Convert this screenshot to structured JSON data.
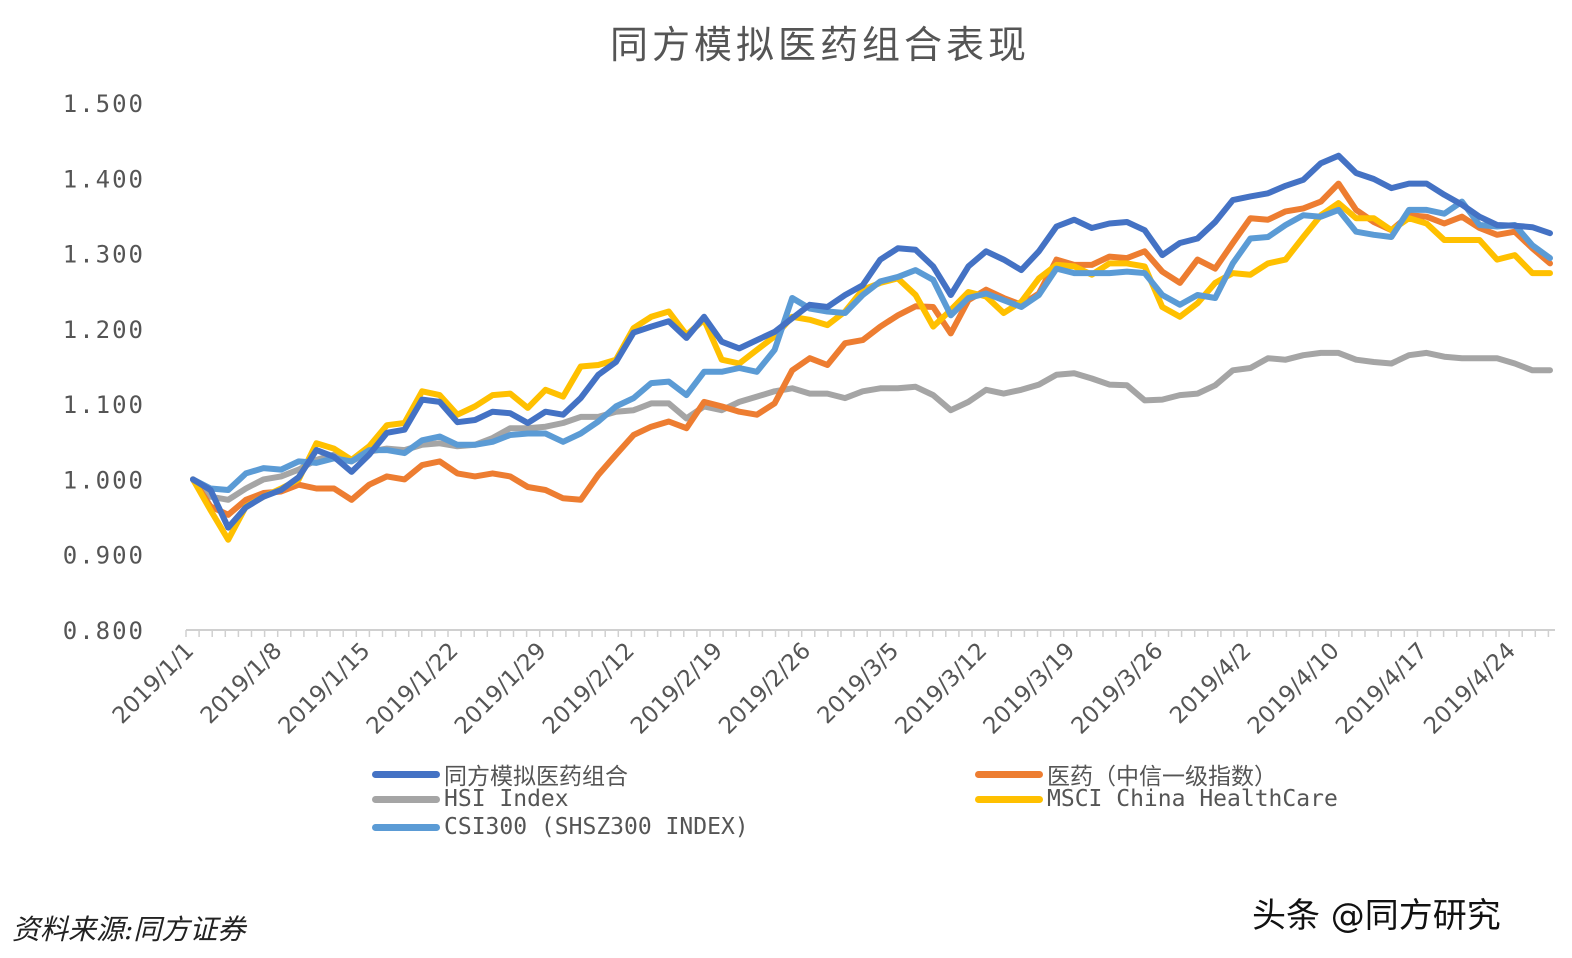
{
  "chart_data": {
    "type": "line",
    "title": "同方模拟医药组合表现",
    "xlabel": "",
    "ylabel": "",
    "ylim": [
      0.8,
      1.5
    ],
    "y_ticks": [
      "0.800",
      "0.900",
      "1.000",
      "1.100",
      "1.200",
      "1.300",
      "1.400",
      "1.500"
    ],
    "x_tick_labels": [
      "2019/1/1",
      "2019/1/8",
      "2019/1/15",
      "2019/1/22",
      "2019/1/29",
      "2019/2/12",
      "2019/2/19",
      "2019/2/26",
      "2019/3/5",
      "2019/3/12",
      "2019/3/19",
      "2019/3/26",
      "2019/4/2",
      "2019/4/10",
      "2019/4/17",
      "2019/4/24"
    ],
    "x_tick_label_every": 5,
    "grid": false,
    "legend_position": "bottom",
    "series": [
      {
        "name": "同方模拟医药组合",
        "color": "#4472C4",
        "values": [
          1.0,
          0.986,
          0.936,
          0.963,
          0.977,
          0.986,
          1.003,
          1.039,
          1.03,
          1.01,
          1.033,
          1.062,
          1.066,
          1.106,
          1.103,
          1.076,
          1.079,
          1.09,
          1.088,
          1.075,
          1.09,
          1.086,
          1.108,
          1.139,
          1.156,
          1.195,
          1.203,
          1.21,
          1.188,
          1.216,
          1.183,
          1.174,
          1.185,
          1.196,
          1.214,
          1.232,
          1.229,
          1.245,
          1.258,
          1.292,
          1.307,
          1.305,
          1.283,
          1.245,
          1.283,
          1.303,
          1.292,
          1.278,
          1.303,
          1.336,
          1.345,
          1.334,
          1.34,
          1.342,
          1.331,
          1.298,
          1.314,
          1.32,
          1.342,
          1.371,
          1.376,
          1.38,
          1.39,
          1.398,
          1.42,
          1.43,
          1.407,
          1.399,
          1.387,
          1.393,
          1.393,
          1.378,
          1.365,
          1.349,
          1.338,
          1.337,
          1.335,
          1.327
        ]
      },
      {
        "name": "医药（中信一级指数）",
        "color": "#ED7D31",
        "values": [
          1.0,
          0.964,
          0.953,
          0.973,
          0.982,
          0.984,
          0.993,
          0.988,
          0.988,
          0.973,
          0.993,
          1.004,
          1.0,
          1.019,
          1.024,
          1.008,
          1.004,
          1.008,
          1.004,
          0.99,
          0.986,
          0.975,
          0.973,
          1.006,
          1.033,
          1.059,
          1.07,
          1.077,
          1.068,
          1.103,
          1.097,
          1.09,
          1.086,
          1.101,
          1.145,
          1.161,
          1.152,
          1.181,
          1.185,
          1.203,
          1.218,
          1.23,
          1.229,
          1.194,
          1.238,
          1.252,
          1.241,
          1.232,
          1.247,
          1.292,
          1.285,
          1.285,
          1.296,
          1.294,
          1.303,
          1.276,
          1.261,
          1.292,
          1.28,
          1.314,
          1.347,
          1.345,
          1.356,
          1.36,
          1.369,
          1.393,
          1.358,
          1.342,
          1.331,
          1.351,
          1.349,
          1.34,
          1.349,
          1.334,
          1.325,
          1.329,
          1.307,
          1.287
        ]
      },
      {
        "name": "HSI Index",
        "color": "#A5A5A5",
        "values": [
          1.0,
          0.977,
          0.973,
          0.988,
          1.0,
          1.004,
          1.013,
          1.026,
          1.033,
          1.024,
          1.037,
          1.041,
          1.039,
          1.046,
          1.048,
          1.044,
          1.046,
          1.055,
          1.068,
          1.068,
          1.07,
          1.075,
          1.083,
          1.083,
          1.09,
          1.092,
          1.101,
          1.101,
          1.081,
          1.097,
          1.092,
          1.103,
          1.11,
          1.117,
          1.121,
          1.114,
          1.114,
          1.108,
          1.117,
          1.121,
          1.121,
          1.123,
          1.112,
          1.092,
          1.103,
          1.119,
          1.114,
          1.119,
          1.126,
          1.139,
          1.141,
          1.134,
          1.126,
          1.125,
          1.105,
          1.106,
          1.112,
          1.114,
          1.125,
          1.145,
          1.148,
          1.161,
          1.159,
          1.165,
          1.168,
          1.168,
          1.159,
          1.156,
          1.154,
          1.165,
          1.168,
          1.163,
          1.161,
          1.161,
          1.161,
          1.154,
          1.145,
          1.145
        ]
      },
      {
        "name": "MSCI China HealthCare",
        "color": "#FFC000",
        "values": [
          1.0,
          0.959,
          0.92,
          0.964,
          0.977,
          0.988,
          1.0,
          1.048,
          1.041,
          1.026,
          1.044,
          1.072,
          1.075,
          1.117,
          1.112,
          1.086,
          1.097,
          1.112,
          1.114,
          1.095,
          1.119,
          1.11,
          1.15,
          1.152,
          1.159,
          1.201,
          1.216,
          1.223,
          1.192,
          1.212,
          1.159,
          1.154,
          1.172,
          1.19,
          1.216,
          1.212,
          1.205,
          1.223,
          1.252,
          1.261,
          1.267,
          1.245,
          1.203,
          1.225,
          1.249,
          1.243,
          1.221,
          1.236,
          1.267,
          1.285,
          1.283,
          1.272,
          1.287,
          1.287,
          1.283,
          1.229,
          1.216,
          1.234,
          1.261,
          1.274,
          1.272,
          1.287,
          1.292,
          1.322,
          1.351,
          1.367,
          1.347,
          1.347,
          1.331,
          1.347,
          1.34,
          1.318,
          1.318,
          1.318,
          1.292,
          1.298,
          1.274,
          1.274
        ]
      },
      {
        "name": "CSI300 (SHSZ300 INDEX)",
        "color": "#5B9BD5",
        "values": [
          1.0,
          0.988,
          0.986,
          1.008,
          1.015,
          1.013,
          1.024,
          1.022,
          1.028,
          1.024,
          1.039,
          1.039,
          1.035,
          1.052,
          1.057,
          1.046,
          1.046,
          1.05,
          1.059,
          1.061,
          1.061,
          1.05,
          1.061,
          1.077,
          1.097,
          1.108,
          1.128,
          1.13,
          1.112,
          1.143,
          1.143,
          1.148,
          1.143,
          1.172,
          1.241,
          1.227,
          1.223,
          1.221,
          1.245,
          1.263,
          1.269,
          1.278,
          1.265,
          1.218,
          1.241,
          1.247,
          1.238,
          1.229,
          1.245,
          1.28,
          1.274,
          1.274,
          1.274,
          1.276,
          1.274,
          1.245,
          1.232,
          1.245,
          1.241,
          1.287,
          1.32,
          1.322,
          1.338,
          1.351,
          1.349,
          1.358,
          1.329,
          1.325,
          1.322,
          1.358,
          1.358,
          1.353,
          1.369,
          1.338,
          1.336,
          1.338,
          1.311,
          1.294
        ]
      }
    ]
  },
  "legend": {
    "items": [
      "同方模拟医药组合",
      "医药（中信一级指数）",
      "HSI Index",
      "MSCI China HealthCare",
      "CSI300 (SHSZ300 INDEX)"
    ]
  },
  "footer": {
    "source": "资料来源:同方证券",
    "watermark": "头条 @同方研究"
  }
}
